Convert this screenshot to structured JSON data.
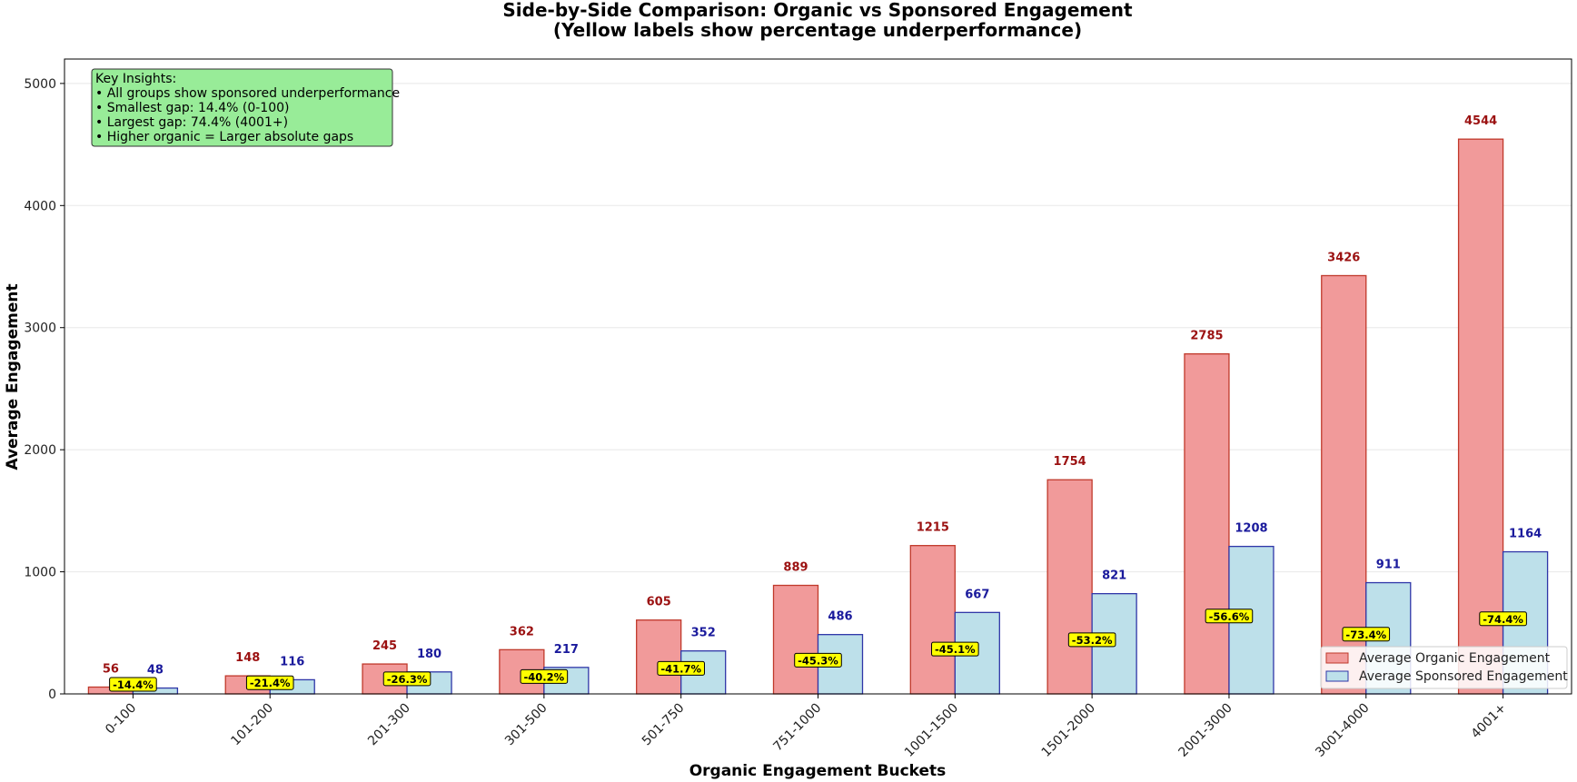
{
  "chart_data": {
    "type": "bar",
    "title": "Side-by-Side Comparison: Organic vs Sponsored Engagement",
    "subtitle": "(Yellow labels show percentage underperformance)",
    "xlabel": "Organic Engagement Buckets",
    "ylabel": "Average Engagement",
    "ylim": [
      0,
      5200
    ],
    "yticks": [
      0,
      1000,
      2000,
      3000,
      4000,
      5000
    ],
    "ytick_labels": [
      "0",
      "1000",
      "2000",
      "3000",
      "4000",
      "5000"
    ],
    "grid": "horizontal",
    "categories": [
      "0-100",
      "101-200",
      "201-300",
      "301-500",
      "501-750",
      "751-1000",
      "1001-1500",
      "1501-2000",
      "2001-3000",
      "3001-4000",
      "4001+"
    ],
    "series": [
      {
        "name": "Average Organic Engagement",
        "values": [
          56,
          148,
          245,
          362,
          605,
          889,
          1215,
          1754,
          2785,
          3426,
          4544
        ],
        "labels": [
          "56",
          "148",
          "245",
          "362",
          "605",
          "889",
          "1215",
          "1754",
          "2785",
          "3426",
          "4544"
        ]
      },
      {
        "name": "Average Sponsored Engagement",
        "values": [
          48,
          116,
          180,
          217,
          352,
          486,
          667,
          821,
          1208,
          911,
          1164
        ],
        "labels": [
          "48",
          "116",
          "180",
          "217",
          "352",
          "486",
          "667",
          "821",
          "1208",
          "911",
          "1164"
        ]
      }
    ],
    "gap_labels": [
      "-14.4%",
      "-21.4%",
      "-26.3%",
      "-40.2%",
      "-41.7%",
      "-45.3%",
      "-45.1%",
      "-53.2%",
      "-56.6%",
      "-73.4%",
      "-74.4%"
    ],
    "annotation": {
      "lines": [
        "Key Insights:",
        "• All groups show sponsored underperformance",
        "• Smallest gap: 14.4% (0-100)",
        "• Largest gap: 74.4% (4001+)",
        "• Higher organic = Larger absolute gaps"
      ]
    },
    "legend_position": "lower-right",
    "colors": {
      "organic_fill": "#f19a9a",
      "organic_edge": "#c0392b",
      "organic_label": "#9b1111",
      "sponsored_fill": "#bde0ea",
      "sponsored_edge": "#2f36a8",
      "sponsored_label": "#1a1a9c",
      "gap_fill": "#ffff00",
      "insight_fill": "#98ec98",
      "grid": "#e8e8e8"
    }
  }
}
